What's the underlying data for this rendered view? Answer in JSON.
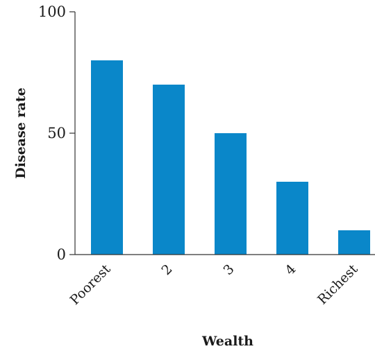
{
  "chart_data": {
    "type": "bar",
    "categories": [
      "Poorest",
      "2",
      "3",
      "4",
      "Richest"
    ],
    "values": [
      80,
      70,
      50,
      30,
      10
    ],
    "xlabel": "Wealth",
    "ylabel": "Disease rate",
    "ylim": [
      0,
      100
    ],
    "yticks": [
      0,
      50,
      100
    ],
    "ytick_labels": [
      "0",
      "50",
      "100"
    ],
    "grid": false,
    "legend": "none",
    "bar_color": "#0a87c9",
    "axis_color": "#333333"
  }
}
